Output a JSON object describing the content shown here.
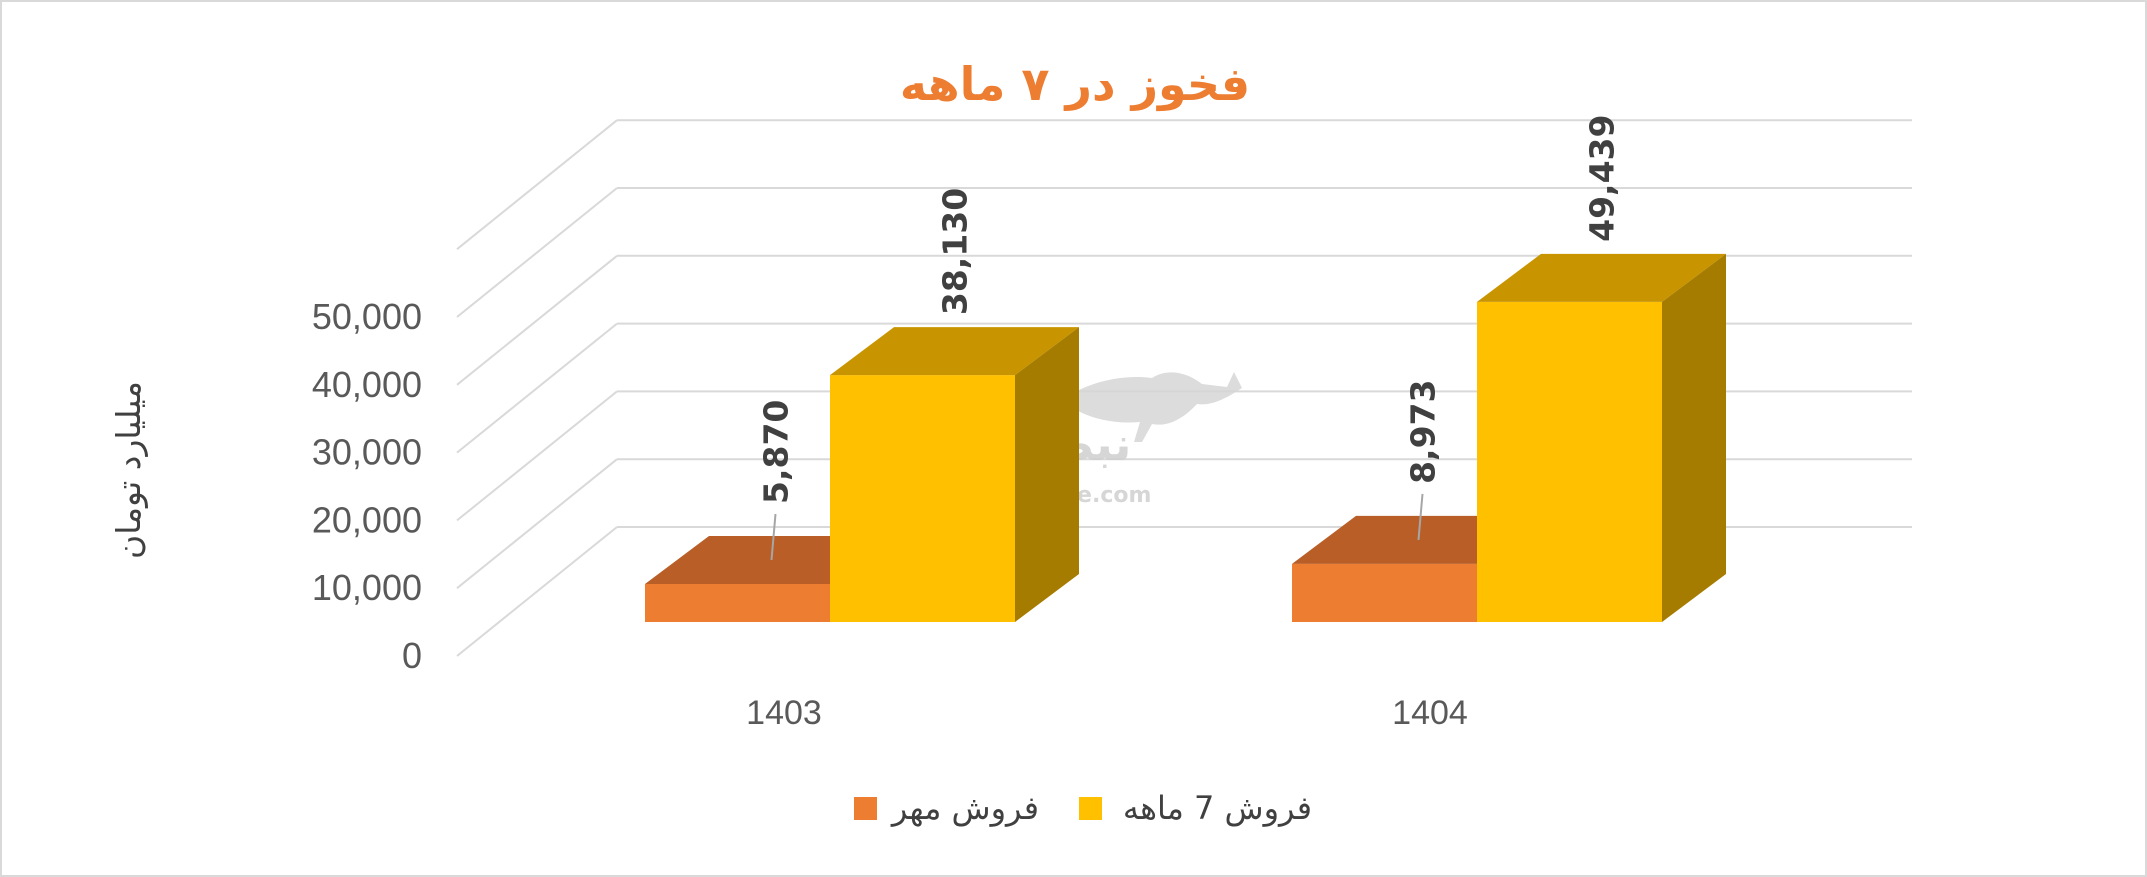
{
  "chart_data": {
    "type": "bar",
    "title": "فخوز در ۷ ماهه",
    "ylabel": "میلیارد تومان",
    "xlabel": "",
    "categories": [
      "1403",
      "1404"
    ],
    "series": [
      {
        "name": "فروش مهر",
        "values": [
          5870,
          8973
        ],
        "labels": [
          "5,870",
          "8,973"
        ]
      },
      {
        "name": "فروش 7  ماهه",
        "values": [
          38130,
          49439
        ],
        "labels": [
          "38,130",
          "49,439"
        ]
      }
    ],
    "ylim": [
      0,
      60000
    ],
    "yticks": [
      {
        "value": 0,
        "label": "0"
      },
      {
        "value": 10000,
        "label": "10,000"
      },
      {
        "value": 20000,
        "label": "20,000"
      },
      {
        "value": 30000,
        "label": "30,000"
      },
      {
        "value": 40000,
        "label": "40,000"
      },
      {
        "value": 50000,
        "label": "50,000"
      }
    ],
    "grid": true,
    "projection": "3d-column",
    "legend_position": "bottom",
    "colors": {
      "title": "#ED7D31",
      "series": [
        {
          "front": "#ED7D31",
          "top": "#B85E26",
          "side": "#A35221"
        },
        {
          "front": "#FFC000",
          "top": "#C89500",
          "side": "#A67C00"
        }
      ],
      "grid": "#d9d9d9"
    }
  },
  "watermark": {
    "logo_text": "نبض بورس",
    "url_text": "nabzebourse.com"
  }
}
